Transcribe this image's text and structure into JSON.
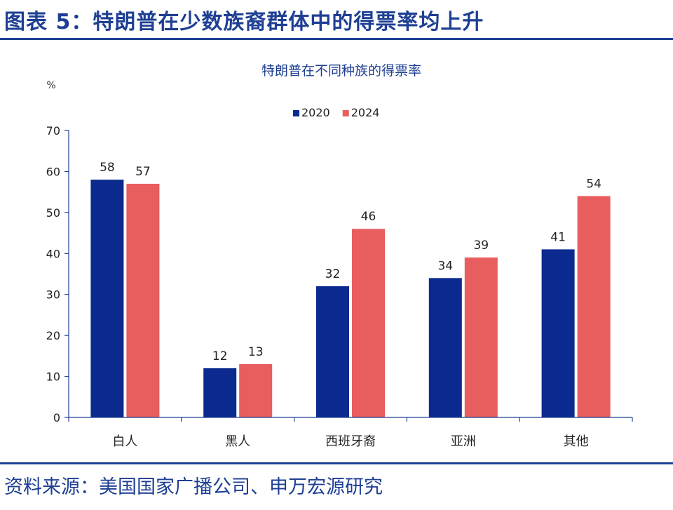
{
  "figure_title": "图表 5：特朗普在少数族裔群体中的得票率均上升",
  "source": "资料来源：美国国家广播公司、申万宏源研究",
  "chart_data": {
    "type": "bar",
    "title": "特朗普在不同种族的得票率",
    "ylabel": "%",
    "xlabel": "",
    "categories": [
      "白人",
      "黑人",
      "西班牙裔",
      "亚洲",
      "其他"
    ],
    "series": [
      {
        "name": "2020",
        "values": [
          58,
          12,
          32,
          34,
          41
        ],
        "color": "#0b2a8f"
      },
      {
        "name": "2024",
        "values": [
          57,
          13,
          46,
          39,
          54
        ],
        "color": "#e85d5d"
      }
    ],
    "ylim": [
      0,
      70
    ],
    "yticks": [
      0,
      10,
      20,
      30,
      40,
      50,
      60,
      70
    ],
    "legend": "top-center",
    "grid": false,
    "data_labels": true
  }
}
